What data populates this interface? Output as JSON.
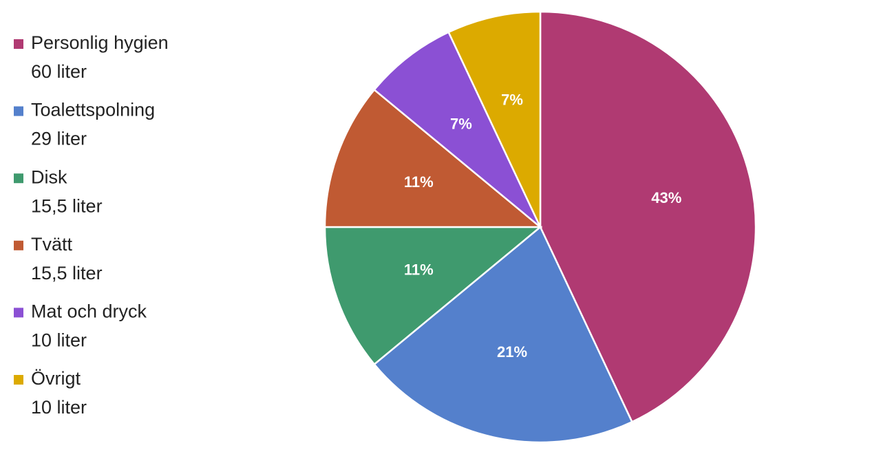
{
  "chart_data": {
    "type": "pie",
    "categories": [
      "Personlig hygien",
      "Toalettspolning",
      "Disk",
      "Tvätt",
      "Mat och dryck",
      "Övrigt"
    ],
    "category_details": [
      "60 liter",
      "29 liter",
      "15,5 liter",
      "15,5 liter",
      "10 liter",
      "10 liter"
    ],
    "values": [
      43,
      21,
      11,
      11,
      7,
      7
    ],
    "value_labels": [
      "43%",
      "21%",
      "11%",
      "11%",
      "7%",
      "7%"
    ],
    "colors": [
      "#b03a72",
      "#5480cc",
      "#3f9a6e",
      "#c05a33",
      "#8b50d4",
      "#dcaa00"
    ],
    "legend": "left"
  }
}
